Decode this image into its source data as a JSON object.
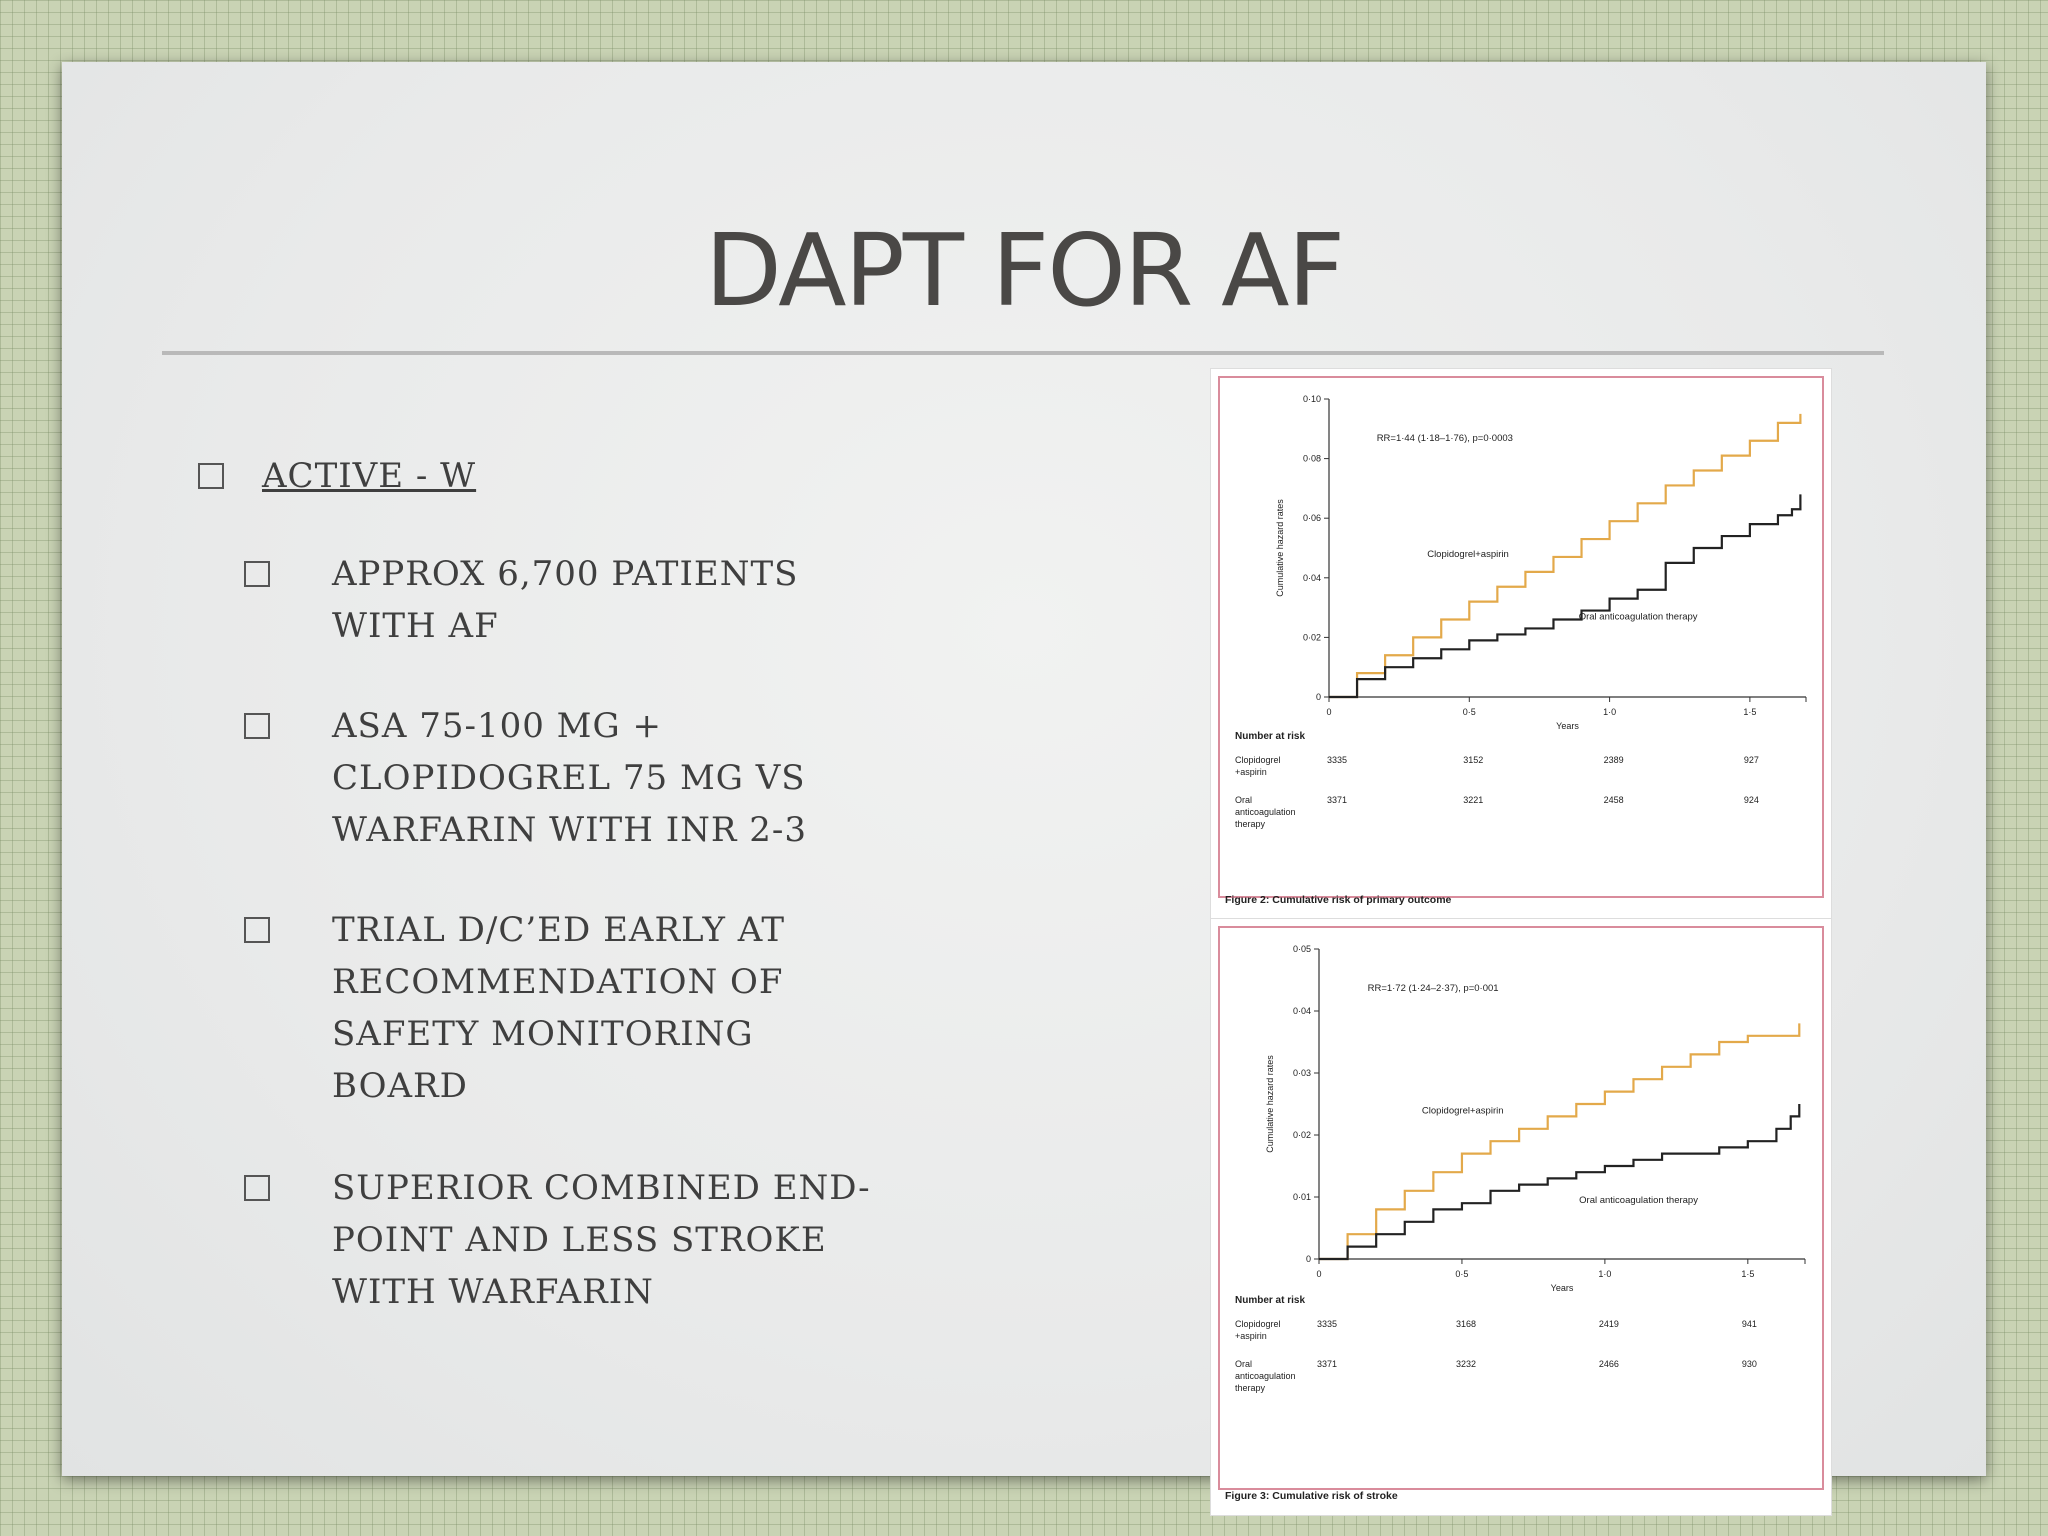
{
  "slide": {
    "title": "DAPT FOR AF",
    "bullets": [
      {
        "level": 1,
        "text": "ACTIVE - W"
      },
      {
        "level": 2,
        "text": "APPROX 6,700 PATIENTS WITH AF",
        "lines": [
          "APPROX 6,700 PATIENTS",
          "WITH AF"
        ]
      },
      {
        "level": 2,
        "text": "ASA 75-100 MG + CLOPIDOGREL 75 MG VS WARFARIN WITH INR 2-3",
        "lines": [
          "ASA 75-100 MG +",
          "CLOPIDOGREL 75 MG VS",
          "WARFARIN WITH INR 2-3"
        ]
      },
      {
        "level": 2,
        "text": "TRIAL D/C’ED EARLY AT RECOMMENDATION OF SAFETY MONITORING BOARD",
        "lines": [
          "TRIAL D/C’ED EARLY AT",
          "RECOMMENDATION OF",
          "SAFETY MONITORING",
          "BOARD"
        ]
      },
      {
        "level": 2,
        "text": "SUPERIOR COMBINED END-POINT AND LESS STROKE WITH WARFARIN",
        "lines": [
          "SUPERIOR COMBINED END-",
          "POINT AND LESS STROKE",
          "WITH WARFARIN"
        ]
      }
    ]
  },
  "colors": {
    "clopidogrel": "#e3a94a",
    "oac": "#222222",
    "frame": "#d98c9c"
  },
  "chart_data": [
    {
      "type": "line",
      "title": "Figure 2: Cumulative risk of primary outcome",
      "annotation": "RR=1·44 (1·18–1·76), p=0·0003",
      "xlabel": "Years",
      "ylabel": "Cumulative hazard rates",
      "xlim": [
        0,
        1.7
      ],
      "ylim": [
        0,
        0.1
      ],
      "xticks": [
        {
          "v": 0,
          "label": "0"
        },
        {
          "v": 0.5,
          "label": "0·5"
        },
        {
          "v": 1.0,
          "label": "1·0"
        },
        {
          "v": 1.5,
          "label": "1·5"
        }
      ],
      "yticks": [
        {
          "v": 0,
          "label": "0"
        },
        {
          "v": 0.02,
          "label": "0·02"
        },
        {
          "v": 0.04,
          "label": "0·04"
        },
        {
          "v": 0.06,
          "label": "0·06"
        },
        {
          "v": 0.08,
          "label": "0·08"
        },
        {
          "v": 0.1,
          "label": "0·10"
        }
      ],
      "series": [
        {
          "name": "Clopidogrel+aspirin",
          "label_at": [
            0.35,
            0.047
          ],
          "x": [
            0,
            0.1,
            0.2,
            0.3,
            0.4,
            0.5,
            0.6,
            0.7,
            0.8,
            0.9,
            1.0,
            1.1,
            1.2,
            1.3,
            1.4,
            1.5,
            1.6,
            1.68
          ],
          "values": [
            0,
            0.008,
            0.014,
            0.02,
            0.026,
            0.032,
            0.037,
            0.042,
            0.047,
            0.053,
            0.059,
            0.065,
            0.071,
            0.076,
            0.081,
            0.086,
            0.092,
            0.095
          ]
        },
        {
          "name": "Oral anticoagulation therapy",
          "label_at": [
            0.89,
            0.026
          ],
          "x": [
            0,
            0.1,
            0.2,
            0.3,
            0.4,
            0.5,
            0.6,
            0.7,
            0.8,
            0.9,
            1.0,
            1.1,
            1.2,
            1.3,
            1.4,
            1.5,
            1.6,
            1.65,
            1.68
          ],
          "values": [
            0,
            0.006,
            0.01,
            0.013,
            0.016,
            0.019,
            0.021,
            0.023,
            0.026,
            0.029,
            0.033,
            0.036,
            0.045,
            0.05,
            0.054,
            0.058,
            0.061,
            0.063,
            0.068
          ]
        }
      ],
      "risk_table": {
        "heading": "Number at risk",
        "rows": [
          {
            "label": [
              "Clopidogrel",
              "+aspirin"
            ],
            "values": [
              "3335",
              "3152",
              "2389",
              "927"
            ]
          },
          {
            "label": [
              "Oral",
              "anticoagulation",
              "therapy"
            ],
            "values": [
              "3371",
              "3221",
              "2458",
              "924"
            ]
          }
        ]
      }
    },
    {
      "type": "line",
      "title": "Figure 3: Cumulative risk of stroke",
      "annotation": "RR=1·72 (1·24–2·37), p=0·001",
      "xlabel": "Years",
      "ylabel": "Cumulative hazard rates",
      "xlim": [
        0,
        1.7
      ],
      "ylim": [
        0,
        0.05
      ],
      "xticks": [
        {
          "v": 0,
          "label": "0"
        },
        {
          "v": 0.5,
          "label": "0·5"
        },
        {
          "v": 1.0,
          "label": "1·0"
        },
        {
          "v": 1.5,
          "label": "1·5"
        }
      ],
      "yticks": [
        {
          "v": 0,
          "label": "0"
        },
        {
          "v": 0.01,
          "label": "0·01"
        },
        {
          "v": 0.02,
          "label": "0·02"
        },
        {
          "v": 0.03,
          "label": "0·03"
        },
        {
          "v": 0.04,
          "label": "0·04"
        },
        {
          "v": 0.05,
          "label": "0·05"
        }
      ],
      "series": [
        {
          "name": "Clopidogrel+aspirin",
          "label_at": [
            0.36,
            0.0235
          ],
          "x": [
            0,
            0.1,
            0.2,
            0.3,
            0.4,
            0.5,
            0.6,
            0.7,
            0.8,
            0.9,
            1.0,
            1.1,
            1.2,
            1.3,
            1.4,
            1.5,
            1.6,
            1.68
          ],
          "values": [
            0,
            0.004,
            0.008,
            0.011,
            0.014,
            0.017,
            0.019,
            0.021,
            0.023,
            0.025,
            0.027,
            0.029,
            0.031,
            0.033,
            0.035,
            0.036,
            0.036,
            0.038
          ]
        },
        {
          "name": "Oral anticoagulation therapy",
          "label_at": [
            0.91,
            0.009
          ],
          "x": [
            0,
            0.1,
            0.2,
            0.3,
            0.4,
            0.5,
            0.6,
            0.7,
            0.8,
            0.9,
            1.0,
            1.1,
            1.2,
            1.3,
            1.4,
            1.5,
            1.6,
            1.65,
            1.68
          ],
          "values": [
            0,
            0.002,
            0.004,
            0.006,
            0.008,
            0.009,
            0.011,
            0.012,
            0.013,
            0.014,
            0.015,
            0.016,
            0.017,
            0.017,
            0.018,
            0.019,
            0.021,
            0.023,
            0.025
          ]
        }
      ],
      "risk_table": {
        "heading": "Number at risk",
        "rows": [
          {
            "label": [
              "Clopidogrel",
              "+aspirin"
            ],
            "values": [
              "3335",
              "3168",
              "2419",
              "941"
            ]
          },
          {
            "label": [
              "Oral",
              "anticoagulation",
              "therapy"
            ],
            "values": [
              "3371",
              "3232",
              "2466",
              "930"
            ]
          }
        ]
      }
    }
  ]
}
